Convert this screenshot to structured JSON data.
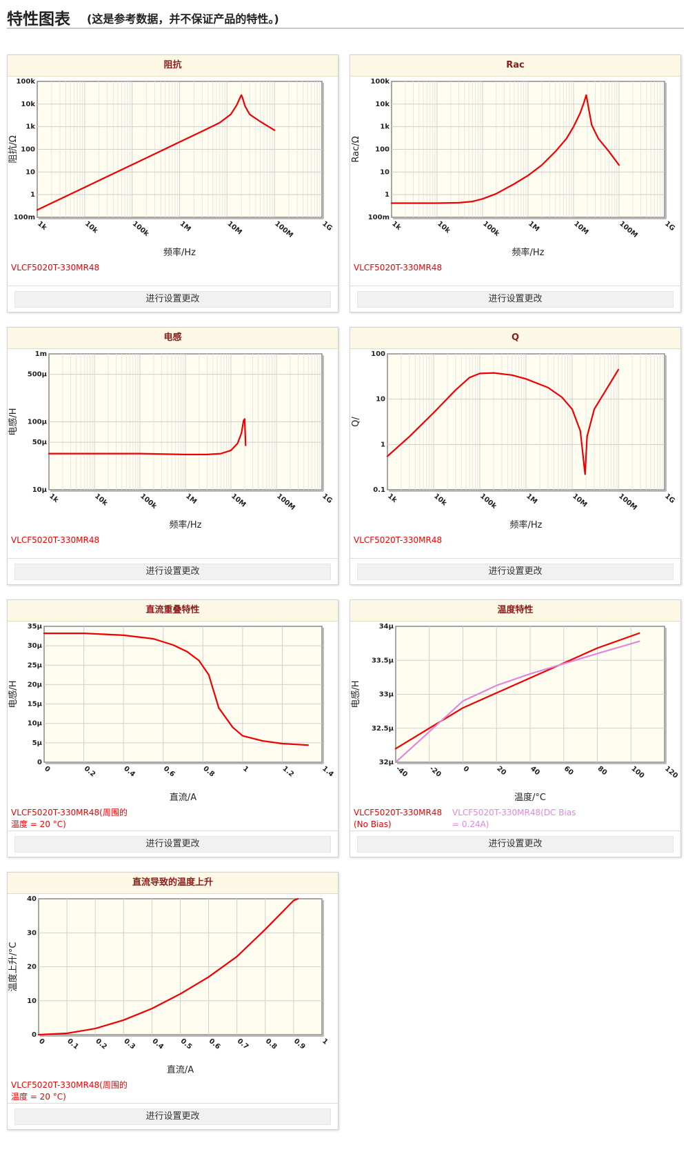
{
  "page": {
    "title": "特性图表",
    "subtitle": "(这是参考数据，并不保证产品的特性。)"
  },
  "settings_button_label": "进行设置更改",
  "chart_data": [
    {
      "id": "impedance",
      "title": "阻抗",
      "type": "line",
      "xscale": "log",
      "yscale": "log",
      "xlim": [
        1000,
        1000000000
      ],
      "ylim": [
        0.1,
        100000
      ],
      "xticks": [
        1000,
        10000,
        100000,
        1000000,
        10000000,
        100000000,
        1000000000
      ],
      "xtick_labels": [
        "1k",
        "10k",
        "100k",
        "1M",
        "10M",
        "100M",
        "1G"
      ],
      "yticks": [
        0.1,
        1,
        10,
        100,
        1000,
        10000,
        100000
      ],
      "ytick_labels": [
        "100m",
        "1",
        "10",
        "100",
        "1k",
        "10k",
        "100k"
      ],
      "xlabel": "频率/Hz",
      "ylabel": "阻抗/Ω",
      "legend": [
        "VLCF5020T-330MR48"
      ],
      "series": [
        {
          "name": "VLCF5020T-330MR48",
          "color": "#ee0000",
          "points": [
            [
              1000,
              0.21
            ],
            [
              3000,
              0.63
            ],
            [
              10000,
              2.1
            ],
            [
              30000,
              6.3
            ],
            [
              100000,
              21
            ],
            [
              300000,
              63
            ],
            [
              1000000,
              210
            ],
            [
              3000000,
              630
            ],
            [
              7000000,
              1500
            ],
            [
              12000000,
              3500
            ],
            [
              16000000,
              9000
            ],
            [
              19000000,
              20000
            ],
            [
              20000000,
              25000
            ],
            [
              21000000,
              20000
            ],
            [
              24000000,
              8000
            ],
            [
              30000000,
              3500
            ],
            [
              50000000,
              1700
            ],
            [
              100000000,
              700
            ]
          ]
        }
      ]
    },
    {
      "id": "rac",
      "title": "Rac",
      "type": "line",
      "xscale": "log",
      "yscale": "log",
      "xlim": [
        1000,
        1000000000
      ],
      "ylim": [
        0.1,
        100000
      ],
      "xticks": [
        1000,
        10000,
        100000,
        1000000,
        10000000,
        100000000,
        1000000000
      ],
      "xtick_labels": [
        "1k",
        "10k",
        "100k",
        "1M",
        "10M",
        "100M",
        "1G"
      ],
      "yticks": [
        0.1,
        1,
        10,
        100,
        1000,
        10000,
        100000
      ],
      "ytick_labels": [
        "100m",
        "1",
        "10",
        "100",
        "1k",
        "10k",
        "100k"
      ],
      "xlabel": "频率/Hz",
      "ylabel": "Rac/Ω",
      "legend": [
        "VLCF5020T-330MR48"
      ],
      "series": [
        {
          "name": "VLCF5020T-330MR48",
          "color": "#ee0000",
          "points": [
            [
              1000,
              0.42
            ],
            [
              10000,
              0.42
            ],
            [
              30000,
              0.44
            ],
            [
              60000,
              0.5
            ],
            [
              100000,
              0.65
            ],
            [
              200000,
              1.1
            ],
            [
              500000,
              3
            ],
            [
              1000000,
              7
            ],
            [
              2000000,
              20
            ],
            [
              4000000,
              80
            ],
            [
              7000000,
              300
            ],
            [
              10000000,
              1000
            ],
            [
              14000000,
              4000
            ],
            [
              17000000,
              12000
            ],
            [
              19000000,
              25000
            ],
            [
              21000000,
              8000
            ],
            [
              25000000,
              1200
            ],
            [
              35000000,
              300
            ],
            [
              60000000,
              80
            ],
            [
              100000000,
              20
            ]
          ]
        }
      ]
    },
    {
      "id": "inductance",
      "title": "电感",
      "type": "line",
      "xscale": "log",
      "yscale": "log",
      "xlim": [
        1000,
        1000000000
      ],
      "ylim": [
        1e-05,
        0.001
      ],
      "xticks": [
        1000,
        10000,
        100000,
        1000000,
        10000000,
        100000000,
        1000000000
      ],
      "xtick_labels": [
        "1k",
        "10k",
        "100k",
        "1M",
        "10M",
        "100M",
        "1G"
      ],
      "yticks": [
        1e-05,
        5e-05,
        0.0001,
        0.0005,
        0.001
      ],
      "ytick_labels": [
        "10μ",
        "50μ",
        "100μ",
        "500μ",
        "1m"
      ],
      "xlabel": "频率/Hz",
      "ylabel": "电感/H",
      "legend": [
        "VLCF5020T-330MR48"
      ],
      "series": [
        {
          "name": "VLCF5020T-330MR48",
          "color": "#ee0000",
          "points": [
            [
              1000,
              3.4e-05
            ],
            [
              100000,
              3.4e-05
            ],
            [
              1000000,
              3.3e-05
            ],
            [
              3000000,
              3.3e-05
            ],
            [
              6000000,
              3.4e-05
            ],
            [
              10000000,
              3.8e-05
            ],
            [
              14000000,
              4.8e-05
            ],
            [
              17000000,
              6.8e-05
            ],
            [
              19000000,
              0.000105
            ],
            [
              20000000,
              0.00011
            ],
            [
              21000000,
              4.5e-05
            ]
          ]
        }
      ]
    },
    {
      "id": "q",
      "title": "Q",
      "type": "line",
      "xscale": "log",
      "yscale": "log",
      "xlim": [
        1000,
        1000000000
      ],
      "ylim": [
        0.1,
        100
      ],
      "xticks": [
        1000,
        10000,
        100000,
        1000000,
        10000000,
        100000000,
        1000000000
      ],
      "xtick_labels": [
        "1k",
        "10k",
        "100k",
        "1M",
        "10M",
        "100M",
        "1G"
      ],
      "yticks": [
        0.1,
        1,
        10,
        100
      ],
      "ytick_labels": [
        "0.1",
        "1",
        "10",
        "100"
      ],
      "xlabel": "频率/Hz",
      "ylabel": "Q/",
      "legend": [
        "VLCF5020T-330MR48"
      ],
      "series": [
        {
          "name": "VLCF5020T-330MR48",
          "color": "#ee0000",
          "points": [
            [
              1000,
              0.55
            ],
            [
              3000,
              1.5
            ],
            [
              10000,
              5
            ],
            [
              30000,
              16
            ],
            [
              60000,
              30
            ],
            [
              100000,
              37
            ],
            [
              200000,
              38
            ],
            [
              500000,
              34
            ],
            [
              1000000,
              28
            ],
            [
              3000000,
              18
            ],
            [
              6000000,
              11
            ],
            [
              10000000,
              6
            ],
            [
              15000000,
              2
            ],
            [
              19000000,
              0.22
            ],
            [
              21000000,
              1.5
            ],
            [
              30000000,
              6
            ],
            [
              50000000,
              14
            ],
            [
              100000000,
              45
            ]
          ]
        }
      ]
    },
    {
      "id": "dc_bias",
      "title": "直流重叠特性",
      "type": "line",
      "xscale": "linear",
      "yscale": "linear",
      "xlim": [
        0,
        1.4
      ],
      "ylim": [
        0,
        3.5e-05
      ],
      "xticks": [
        0,
        0.2,
        0.4,
        0.6,
        0.8,
        1,
        1.2,
        1.4
      ],
      "xtick_labels": [
        "0",
        "0.2",
        "0.4",
        "0.6",
        "0.8",
        "1",
        "1.2",
        "1.4"
      ],
      "yticks": [
        0,
        5e-06,
        1e-05,
        1.5e-05,
        2e-05,
        2.5e-05,
        3e-05,
        3.5e-05
      ],
      "ytick_labels": [
        "0",
        "5μ",
        "10μ",
        "15μ",
        "20μ",
        "25μ",
        "30μ",
        "35μ"
      ],
      "xlabel": "直流/A",
      "ylabel": "电感/H",
      "legend": [
        "VLCF5020T-330MR48(周围的",
        "温度 = 20 °C)"
      ],
      "series": [
        {
          "name": "VLCF5020T-330MR48",
          "color": "#ee0000",
          "points": [
            [
              0,
              3.32e-05
            ],
            [
              0.2,
              3.32e-05
            ],
            [
              0.4,
              3.27e-05
            ],
            [
              0.55,
              3.18e-05
            ],
            [
              0.65,
              3.02e-05
            ],
            [
              0.72,
              2.85e-05
            ],
            [
              0.78,
              2.62e-05
            ],
            [
              0.83,
              2.25e-05
            ],
            [
              0.88,
              1.4e-05
            ],
            [
              0.95,
              9e-06
            ],
            [
              1,
              6.8e-06
            ],
            [
              1.1,
              5.5e-06
            ],
            [
              1.2,
              4.8e-06
            ],
            [
              1.33,
              4.4e-06
            ]
          ]
        }
      ]
    },
    {
      "id": "temperature",
      "title": "温度特性",
      "type": "line",
      "xscale": "linear",
      "yscale": "linear",
      "xlim": [
        -40,
        120
      ],
      "ylim": [
        3.2e-05,
        3.4e-05
      ],
      "xticks": [
        -40,
        -20,
        0,
        20,
        40,
        60,
        80,
        100,
        120
      ],
      "xtick_labels": [
        "-40",
        "-20",
        "0",
        "20",
        "40",
        "60",
        "80",
        "100",
        "120"
      ],
      "yticks": [
        3.2e-05,
        3.25e-05,
        3.3e-05,
        3.35e-05,
        3.4e-05
      ],
      "ytick_labels": [
        "32μ",
        "32.5μ",
        "33μ",
        "33.5μ",
        "34μ"
      ],
      "xlabel": "温度/°C",
      "ylabel": "电感/H",
      "legend": [
        "VLCF5020T-330MR48",
        "(No Bias)"
      ],
      "legend2": [
        "VLCF5020T-330MR48(DC Bias",
        "= 0.24A)"
      ],
      "series": [
        {
          "name": "VLCF5020T-330MR48 (No Bias)",
          "color": "#ee0000",
          "points": [
            [
              -40,
              3.22e-05
            ],
            [
              0,
              3.28e-05
            ],
            [
              20,
              3.302e-05
            ],
            [
              40,
              3.324e-05
            ],
            [
              60,
              3.346e-05
            ],
            [
              80,
              3.368e-05
            ],
            [
              105,
              3.39e-05
            ]
          ]
        },
        {
          "name": "VLCF5020T-330MR48(DC Bias = 0.24A)",
          "color": "#dd88dd",
          "points": [
            [
              -40,
              3.2e-05
            ],
            [
              -20,
              3.245e-05
            ],
            [
              0,
              3.29e-05
            ],
            [
              20,
              3.313e-05
            ],
            [
              40,
              3.33e-05
            ],
            [
              60,
              3.345e-05
            ],
            [
              80,
              3.36e-05
            ],
            [
              105,
              3.378e-05
            ]
          ]
        }
      ]
    },
    {
      "id": "temp_rise",
      "title": "直流导致的温度上升",
      "type": "line",
      "xscale": "linear",
      "yscale": "linear",
      "xlim": [
        0,
        1
      ],
      "ylim": [
        0,
        40
      ],
      "xticks": [
        0,
        0.1,
        0.2,
        0.3,
        0.4,
        0.5,
        0.6,
        0.7,
        0.8,
        0.9,
        1
      ],
      "xtick_labels": [
        "0",
        "0.1",
        "0.2",
        "0.3",
        "0.4",
        "0.5",
        "0.6",
        "0.7",
        "0.8",
        "0.9",
        "1"
      ],
      "yticks": [
        0,
        10,
        20,
        30,
        40
      ],
      "ytick_labels": [
        "0",
        "10",
        "20",
        "30",
        "40"
      ],
      "xlabel": "直流/A",
      "ylabel": "温度上升/°C",
      "legend": [
        "VLCF5020T-330MR48(周围的",
        "温度 = 20 °C)"
      ],
      "series": [
        {
          "name": "VLCF5020T-330MR48",
          "color": "#ee0000",
          "points": [
            [
              0,
              0
            ],
            [
              0.1,
              0.4
            ],
            [
              0.2,
              1.8
            ],
            [
              0.3,
              4.3
            ],
            [
              0.4,
              7.7
            ],
            [
              0.5,
              12
            ],
            [
              0.6,
              17
            ],
            [
              0.7,
              23
            ],
            [
              0.8,
              31
            ],
            [
              0.9,
              39.5
            ],
            [
              0.915,
              40
            ]
          ]
        }
      ]
    }
  ]
}
